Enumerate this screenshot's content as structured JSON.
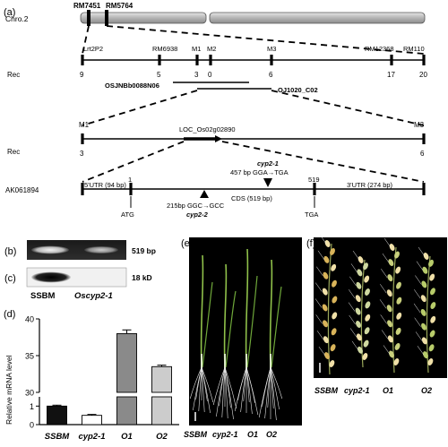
{
  "panel_labels": {
    "a": "(a)",
    "b": "(b)",
    "c": "(c)",
    "d": "(d)",
    "e": "(e)",
    "f": "(f)"
  },
  "map": {
    "chromosome": "Chro.2",
    "top_markers": [
      "RM7451",
      "RM5764"
    ],
    "rec_label": "Rec",
    "markers": [
      {
        "name": "Lrt2P2",
        "rec": "9"
      },
      {
        "name": "RM6938",
        "rec": "5"
      },
      {
        "name": "M1",
        "rec": "3"
      },
      {
        "name": "M2",
        "rec": "0"
      },
      {
        "name": "M3",
        "rec": "6"
      },
      {
        "name": "RM12368",
        "rec": "17"
      },
      {
        "name": "RM110",
        "rec": "20"
      }
    ],
    "bac_left": "OSJNBb0088N06",
    "bac_right": "OJ1020_C02",
    "fine": {
      "left_marker": "M1",
      "right_marker": "M3",
      "gene": "LOC_Os02g02890",
      "rec_label": "Rec",
      "rec_left": "3",
      "rec_right": "6"
    },
    "gene_model": {
      "accession": "AK061894",
      "pos_start": "1",
      "pos_end": "519",
      "utr5": "5'UTR (94 bp)",
      "cds": "CDS (519 bp)",
      "utr3": "3'UTR (274 bp)",
      "atg": "ATG",
      "tga": "TGA",
      "mut1_name": "cyp2-1",
      "mut1_change": "457 bp GGA→TGA",
      "mut2_name": "cyp2-2",
      "mut2_change": "215bp GGC→GCC"
    }
  },
  "gels": {
    "b_size": "519 bp",
    "c_size": "18 kD",
    "lane1": "SSBM",
    "lane2": "Oscyp2-1"
  },
  "chart_data": {
    "type": "bar",
    "ylabel": "Relative mRNA level",
    "categories": [
      "SSBM",
      "cyp2-1",
      "O1",
      "O2"
    ],
    "values": [
      1.0,
      0.5,
      38.0,
      33.5
    ],
    "errors": [
      0.05,
      0.05,
      0.5,
      0.2
    ],
    "colors": [
      "#111111",
      "#ffffff",
      "#8a8a8a",
      "#cccccc"
    ],
    "axis_break": [
      1.5,
      30
    ],
    "lower_ticks": [
      0,
      1
    ],
    "upper_ticks": [
      30,
      35,
      40
    ],
    "grid": false
  },
  "photo_e": {
    "labels": [
      "SSBM",
      "cyp2-1",
      "O1",
      "O2"
    ]
  },
  "photo_f": {
    "labels": [
      "SSBM",
      "cyp2-1",
      "O1",
      "O2"
    ]
  }
}
